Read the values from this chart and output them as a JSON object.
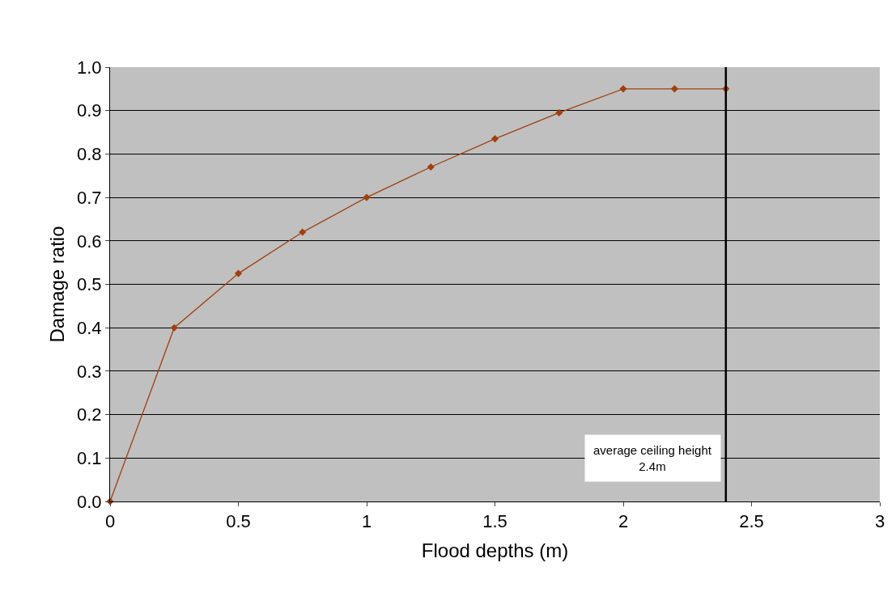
{
  "chart_data": {
    "type": "line",
    "xlabel": "Flood depths (m)",
    "ylabel": "Damage ratio",
    "x": [
      0,
      0.25,
      0.5,
      0.75,
      1,
      1.25,
      1.5,
      1.75,
      2,
      2.2,
      2.4
    ],
    "series": [
      {
        "color": "#a0400f",
        "values": [
          0,
          0.4,
          0.525,
          0.62,
          0.7,
          0.77,
          0.835,
          0.895,
          0.95,
          0.95,
          0.95
        ]
      }
    ],
    "xlim": [
      0,
      3
    ],
    "xticks": [
      0,
      0.5,
      1,
      1.5,
      2,
      2.5,
      3
    ],
    "ylim": [
      0,
      1
    ],
    "yticks": [
      {
        "value": 0,
        "label": "0.0"
      },
      {
        "value": 0.1,
        "label": "0.1"
      },
      {
        "value": 0.2,
        "label": "0.2"
      },
      {
        "value": 0.3,
        "label": "0.3"
      },
      {
        "value": 0.4,
        "label": "0.4"
      },
      {
        "value": 0.5,
        "label": "0.5"
      },
      {
        "value": 0.6,
        "label": "0.6"
      },
      {
        "value": 0.7,
        "label": "0.7"
      },
      {
        "value": 0.8,
        "label": "0.8"
      },
      {
        "value": 0.9,
        "label": "0.9"
      },
      {
        "value": 1,
        "label": "1.0"
      }
    ],
    "ref_lines": [
      {
        "axis": "x",
        "value": 2.4,
        "label": "average ceiling height\n2.4m",
        "color": "#000000"
      }
    ],
    "grid": "y",
    "marker": "diamond",
    "line_style": "solid",
    "legend": false
  }
}
